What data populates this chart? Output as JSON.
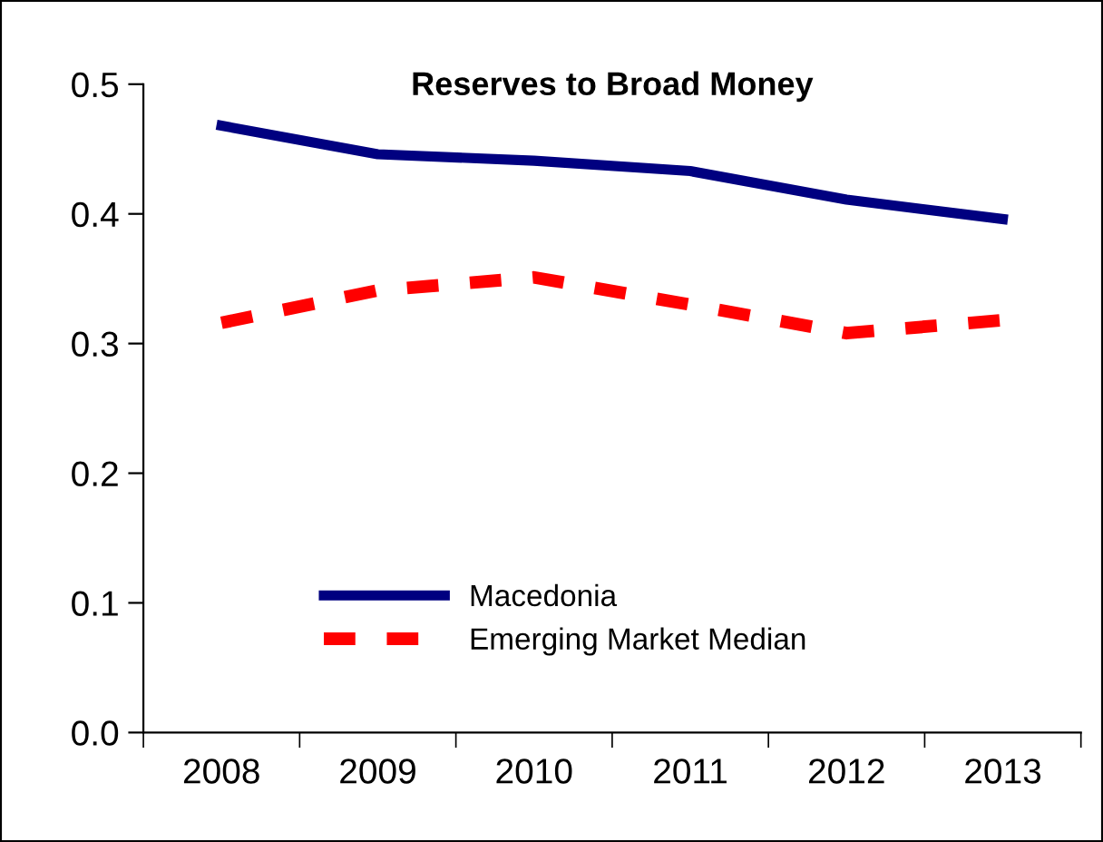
{
  "chart_data": {
    "type": "line",
    "title": "Reserves to Broad Money",
    "categories": [
      "2008",
      "2009",
      "2010",
      "2011",
      "2012",
      "2013"
    ],
    "series": [
      {
        "name": "Macedonia",
        "color": "#000080",
        "line_style": "solid",
        "values": [
          0.468,
          0.446,
          0.441,
          0.433,
          0.411,
          0.396
        ]
      },
      {
        "name": "Emerging Market Median",
        "color": "#ff0000",
        "line_style": "dashed",
        "values": [
          0.316,
          0.341,
          0.351,
          0.33,
          0.308,
          0.318
        ]
      }
    ],
    "ylim": [
      0,
      0.5
    ],
    "yticks": [
      {
        "value": 0,
        "label": "0.0"
      },
      0.1,
      0.2,
      0.3,
      0.4,
      0.5
    ],
    "grid": false,
    "legend": "bottom",
    "marker": "none"
  }
}
